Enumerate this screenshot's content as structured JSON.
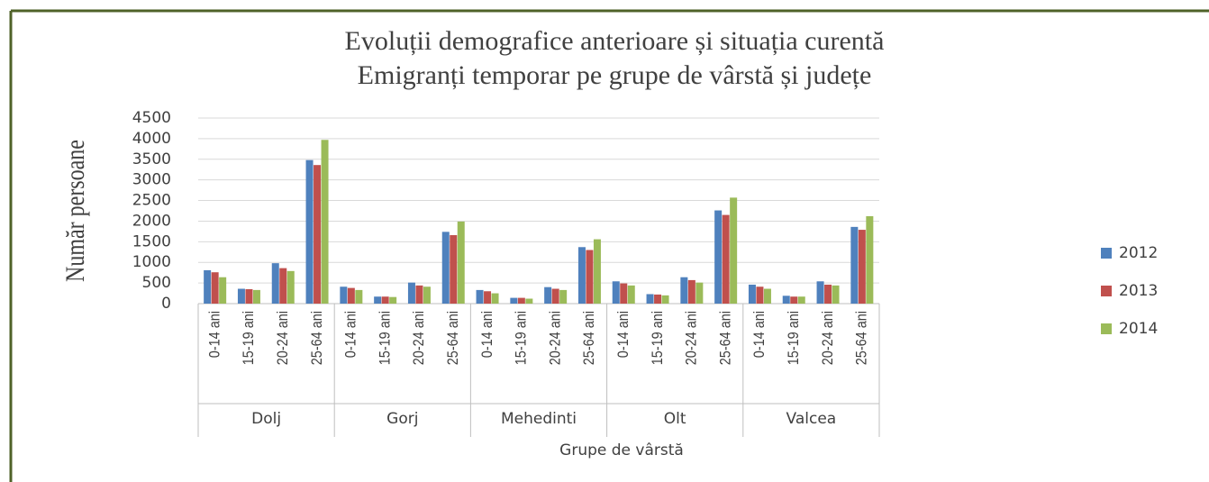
{
  "chart_data": {
    "type": "bar",
    "title": [
      "Evoluții demografice anterioare și situația curentă",
      "Emigranți temporar pe grupe de vârstă și județe"
    ],
    "y_label": "Număr persoane",
    "x_label": "Grupe de vârstă",
    "categories": [
      "0-14 ani",
      "15-19 ani",
      "20-24 ani",
      "25-64 ani",
      "0-14 ani",
      "15-19 ani",
      "20-24 ani",
      "25-64 ani",
      "0-14 ani",
      "15-19 ani",
      "20-24 ani",
      "25-64 ani",
      "0-14 ani",
      "15-19 ani",
      "20-24 ani",
      "25-64 ani",
      "0-14 ani",
      "15-19 ani",
      "20-24 ani",
      "25-64 ani"
    ],
    "category_groups": [
      "Dolj",
      "Gorj",
      "Mehedinti",
      "Olt",
      "Valcea"
    ],
    "series": [
      {
        "name": "2012",
        "color": "#4f81bd",
        "values": [
          810,
          360,
          980,
          3480,
          410,
          170,
          510,
          1740,
          330,
          140,
          400,
          1370,
          540,
          230,
          640,
          2260,
          460,
          190,
          540,
          1860
        ]
      },
      {
        "name": "2013",
        "color": "#c0504d",
        "values": [
          760,
          350,
          860,
          3360,
          380,
          170,
          440,
          1660,
          300,
          140,
          360,
          1300,
          490,
          220,
          570,
          2150,
          410,
          170,
          460,
          1790
        ]
      },
      {
        "name": "2014",
        "color": "#9bbb59",
        "values": [
          640,
          330,
          790,
          3970,
          330,
          160,
          410,
          1990,
          250,
          120,
          330,
          1560,
          440,
          200,
          510,
          2570,
          360,
          170,
          440,
          2120
        ]
      }
    ],
    "ylim": [
      0,
      4500
    ],
    "yticks": [
      0,
      500,
      1000,
      1500,
      2000,
      2500,
      3000,
      3500,
      4000,
      4500
    ],
    "grid": true,
    "legend": "right"
  }
}
